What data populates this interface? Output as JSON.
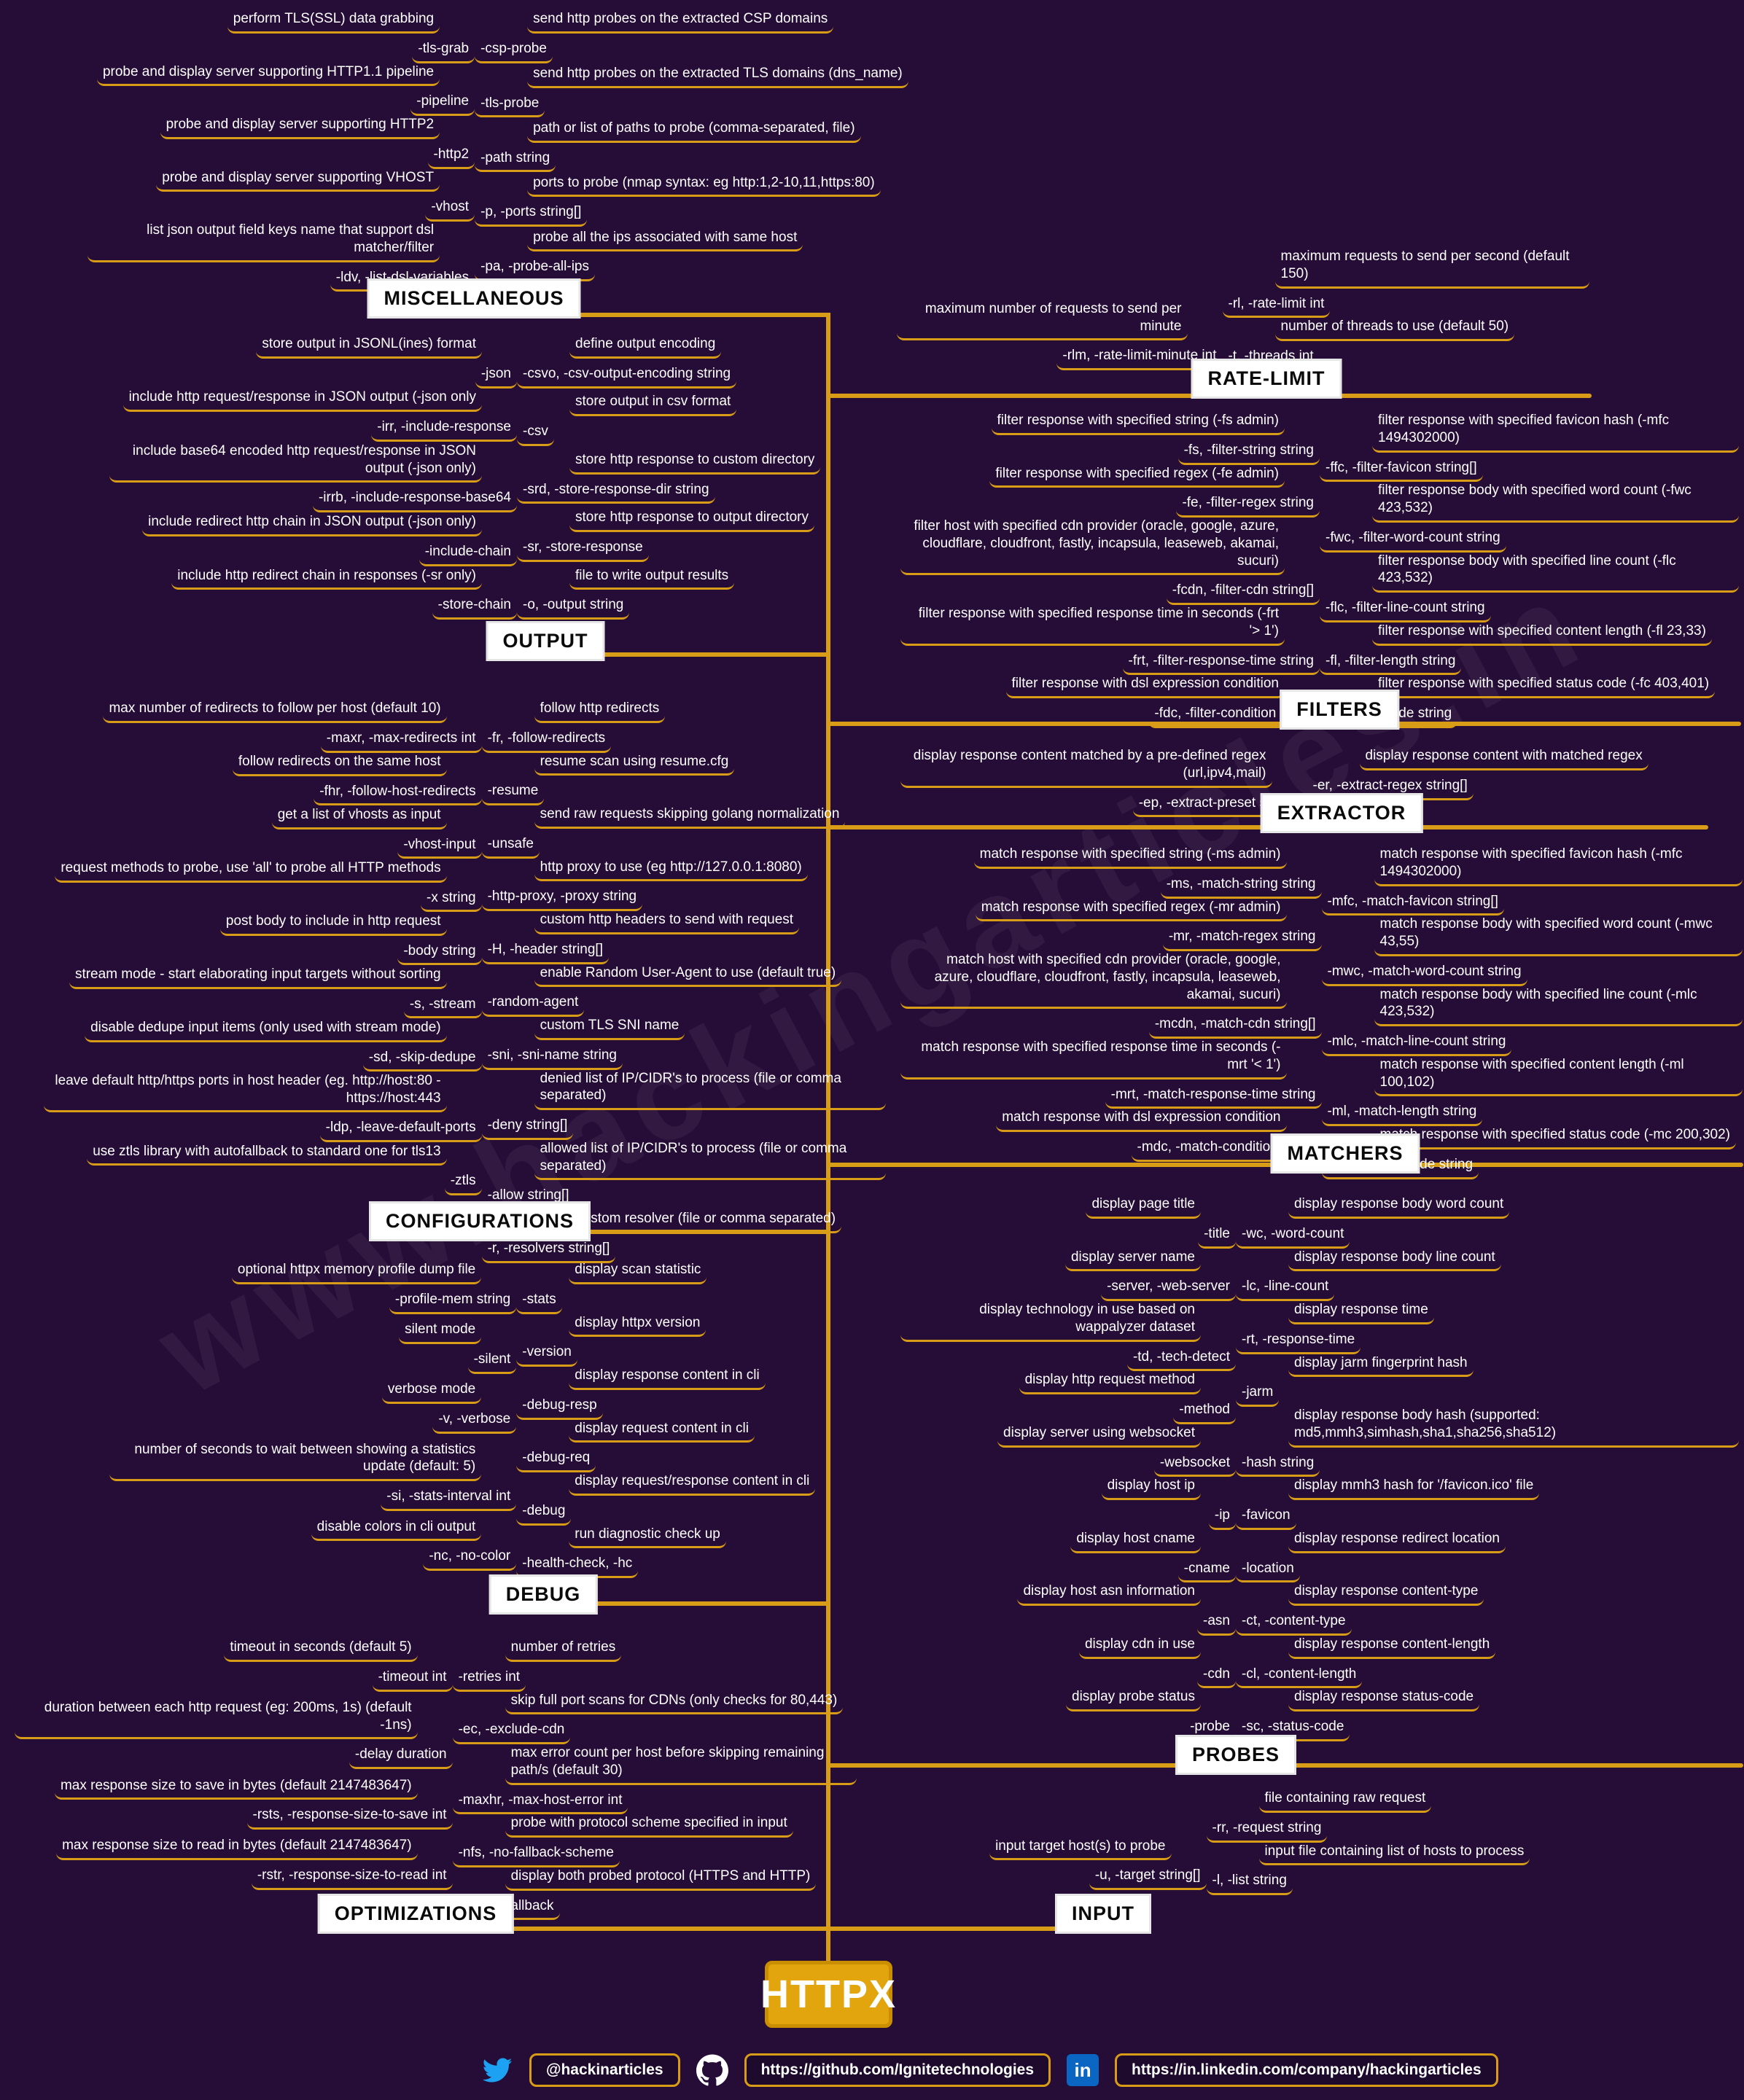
{
  "title": "HTTPX",
  "watermark": "www.hackingarticles.in",
  "colors": {
    "background": "#260d38",
    "line": "#d99c17",
    "text": "#ffffff",
    "node_bg": "#ffffff",
    "node_text": "#0a0a0a",
    "center_bg": "#e2a50e",
    "twitter_blue": "#1da1f2",
    "linkedin_blue": "#0a66c2"
  },
  "sections": [
    {
      "id": "miscellaneous",
      "label": "MISCELLANEOUS",
      "items_left": [
        {
          "desc": "perform TLS(SSL) data grabbing",
          "flag": "-tls-grab"
        },
        {
          "desc": "probe and display server supporting HTTP1.1 pipeline",
          "flag": "-pipeline"
        },
        {
          "desc": "probe and display server supporting HTTP2",
          "flag": "-http2"
        },
        {
          "desc": "probe and display server supporting VHOST",
          "flag": "-vhost"
        },
        {
          "desc": "list json output field keys name that support dsl matcher/filter",
          "flag": "-ldv, -list-dsl-variables"
        }
      ],
      "items_right": [
        {
          "desc": "send http probes on the extracted CSP domains",
          "flag": "-csp-probe"
        },
        {
          "desc": "send http probes on the extracted TLS domains (dns_name)",
          "flag": "-tls-probe"
        },
        {
          "desc": "path or list of paths to probe (comma-separated, file)",
          "flag": "-path string"
        },
        {
          "desc": "ports to probe (nmap syntax: eg http:1,2-10,11,https:80)",
          "flag": "-p, -ports string[]"
        },
        {
          "desc": "probe all the ips associated with same host",
          "flag": "-pa, -probe-all-ips"
        }
      ]
    },
    {
      "id": "rate-limit",
      "label": "RATE-LIMIT",
      "items_left": [
        {
          "desc": "maximum number of requests to send per minute",
          "flag": "-rlm, -rate-limit-minute int"
        }
      ],
      "items_right": [
        {
          "desc": "maximum requests to send per second (default 150)",
          "flag": "-rl, -rate-limit int"
        },
        {
          "desc": "number of threads to use (default 50)",
          "flag": "-t, -threads int"
        }
      ]
    },
    {
      "id": "output",
      "label": "OUTPUT",
      "items_left": [
        {
          "desc": "store output in JSONL(ines) format",
          "flag": "-json"
        },
        {
          "desc": "include http request/response in JSON output (-json only",
          "flag": "-irr, -include-response"
        },
        {
          "desc": "include base64 encoded http request/response in JSON output (-json only)",
          "flag": "-irrb, -include-response-base64"
        },
        {
          "desc": "include redirect http chain in JSON output (-json only)",
          "flag": "-include-chain"
        },
        {
          "desc": "include http redirect chain in responses (-sr only)",
          "flag": "-store-chain"
        }
      ],
      "items_right": [
        {
          "desc": "define output encoding",
          "flag": "-csvo, -csv-output-encoding string"
        },
        {
          "desc": "store output in csv format",
          "flag": "-csv"
        },
        {
          "desc": "store http response to custom directory",
          "flag": "-srd, -store-response-dir string"
        },
        {
          "desc": "store http response to output directory",
          "flag": "-sr, -store-response"
        },
        {
          "desc": "file to write output results",
          "flag": "-o, -output string"
        }
      ]
    },
    {
      "id": "filters",
      "label": "FILTERS",
      "items_left": [
        {
          "desc": "filter response with specified string (-fs admin)",
          "flag": "-fs, -filter-string string"
        },
        {
          "desc": "filter response with specified regex (-fe admin)",
          "flag": "-fe, -filter-regex string"
        },
        {
          "desc": "filter host with specified cdn provider (oracle, google, azure, cloudflare, cloudfront, fastly, incapsula, leaseweb, akamai, sucuri)",
          "flag": "-fcdn, -filter-cdn string[]"
        },
        {
          "desc": "filter response with specified response time in seconds (-frt '> 1')",
          "flag": "-frt, -filter-response-time string"
        },
        {
          "desc": "filter response with dsl expression condition",
          "flag": "-fdc, -filter-condition string"
        }
      ],
      "items_right": [
        {
          "desc": "filter response with specified favicon hash (-mfc 1494302000)",
          "flag": "-ffc, -filter-favicon string[]"
        },
        {
          "desc": "filter response body with specified word count (-fwc 423,532)",
          "flag": "-fwc, -filter-word-count string"
        },
        {
          "desc": "filter response body with specified line count (-flc 423,532)",
          "flag": "-flc, -filter-line-count string"
        },
        {
          "desc": "filter response with specified content length (-fl 23,33)",
          "flag": "-fl, -filter-length string"
        },
        {
          "desc": "filter response with specified status code (-fc 403,401)",
          "flag": "-fc, -filter-code string"
        }
      ]
    },
    {
      "id": "extractor",
      "label": "EXTRACTOR",
      "items_left": [
        {
          "desc": "display response content matched by a pre-defined regex (url,ipv4,mail)",
          "flag": "-ep, -extract-preset string[]"
        }
      ],
      "items_right": [
        {
          "desc": "display response content with matched regex",
          "flag": "-er, -extract-regex string[]"
        }
      ]
    },
    {
      "id": "configurations",
      "label": "CONFIGURATIONS",
      "items_left": [
        {
          "desc": "max number of redirects to follow per host (default 10)",
          "flag": "-maxr, -max-redirects int"
        },
        {
          "desc": "follow redirects on the same host",
          "flag": "-fhr, -follow-host-redirects"
        },
        {
          "desc": "get a list of vhosts as input",
          "flag": "-vhost-input"
        },
        {
          "desc": "request methods to probe, use 'all' to probe all HTTP methods",
          "flag": "-x string"
        },
        {
          "desc": "post body to include in http request",
          "flag": "-body string"
        },
        {
          "desc": "stream mode - start elaborating input targets without sorting",
          "flag": "-s, -stream"
        },
        {
          "desc": "disable dedupe input items (only used with stream mode)",
          "flag": "-sd, -skip-dedupe"
        },
        {
          "desc": "leave default http/https ports in host header (eg. http://host:80 - https://host:443",
          "flag": "-ldp, -leave-default-ports"
        },
        {
          "desc": "use ztls library with autofallback to standard one for tls13",
          "flag": "-ztls"
        }
      ],
      "items_right": [
        {
          "desc": "follow http redirects",
          "flag": "-fr, -follow-redirects"
        },
        {
          "desc": "resume scan using resume.cfg",
          "flag": "-resume"
        },
        {
          "desc": "send raw requests skipping golang normalization",
          "flag": "-unsafe"
        },
        {
          "desc": "http proxy to use (eg http://127.0.0.1:8080)",
          "flag": "-http-proxy, -proxy string"
        },
        {
          "desc": "custom http headers to send with request",
          "flag": "-H, -header string[]"
        },
        {
          "desc": "enable Random User-Agent to use (default true)",
          "flag": "-random-agent"
        },
        {
          "desc": "custom TLS SNI name",
          "flag": "-sni, -sni-name string"
        },
        {
          "desc": "denied list of IP/CIDR's to process (file or comma separated)",
          "flag": "-deny string[]"
        },
        {
          "desc": "allowed list of IP/CIDR's to process (file or comma separated)",
          "flag": "-allow string[]"
        },
        {
          "desc": "list of custom resolver (file or comma separated)",
          "flag": "-r, -resolvers string[]"
        }
      ]
    },
    {
      "id": "matchers",
      "label": "MATCHERS",
      "items_left": [
        {
          "desc": "match response with specified string (-ms admin)",
          "flag": "-ms, -match-string string"
        },
        {
          "desc": "match response with specified regex (-mr admin)",
          "flag": "-mr, -match-regex string"
        },
        {
          "desc": "match host with specified cdn provider (oracle, google, azure, cloudflare, cloudfront, fastly, incapsula, leaseweb, akamai, sucuri)",
          "flag": "-mcdn, -match-cdn string[]"
        },
        {
          "desc": "match response with specified response time in seconds (-mrt '< 1')",
          "flag": "-mrt, -match-response-time string"
        },
        {
          "desc": "match response with dsl expression condition",
          "flag": "-mdc, -match-condition string"
        }
      ],
      "items_right": [
        {
          "desc": "match response with specified favicon hash (-mfc 1494302000)",
          "flag": "-mfc, -match-favicon string[]"
        },
        {
          "desc": "match response body with specified word count (-mwc 43,55)",
          "flag": "-mwc, -match-word-count string"
        },
        {
          "desc": "match response body with specified line count (-mlc 423,532)",
          "flag": "-mlc, -match-line-count string"
        },
        {
          "desc": "match response with specified content length (-ml 100,102)",
          "flag": "-ml, -match-length string"
        },
        {
          "desc": "match response with specified status code (-mc 200,302)",
          "flag": "-mc, -match-code string"
        }
      ]
    },
    {
      "id": "debug",
      "label": "DEBUG",
      "items_left": [
        {
          "desc": "optional httpx memory profile dump file",
          "flag": "-profile-mem string"
        },
        {
          "desc": "silent mode",
          "flag": "-silent"
        },
        {
          "desc": "verbose mode",
          "flag": "-v, -verbose"
        },
        {
          "desc": "number of seconds to wait between showing a statistics update (default: 5)",
          "flag": "-si, -stats-interval int"
        },
        {
          "desc": "disable colors in cli output",
          "flag": "-nc, -no-color"
        }
      ],
      "items_right": [
        {
          "desc": "display scan statistic",
          "flag": "-stats"
        },
        {
          "desc": "display httpx version",
          "flag": "-version"
        },
        {
          "desc": "display response content in cli",
          "flag": "-debug-resp"
        },
        {
          "desc": "display request content in cli",
          "flag": "-debug-req"
        },
        {
          "desc": "display request/response content in cli",
          "flag": "-debug"
        },
        {
          "desc": "run diagnostic check up",
          "flag": "-health-check, -hc"
        }
      ]
    },
    {
      "id": "probes",
      "label": "PROBES",
      "items_left": [
        {
          "desc": "display page title",
          "flag": "-title"
        },
        {
          "desc": "display server name",
          "flag": "-server, -web-server"
        },
        {
          "desc": "display technology in use based on wappalyzer dataset",
          "flag": "-td, -tech-detect"
        },
        {
          "desc": "display http request method",
          "flag": "-method"
        },
        {
          "desc": "display server using websocket",
          "flag": "-websocket"
        },
        {
          "desc": "display host ip",
          "flag": "-ip"
        },
        {
          "desc": "display host cname",
          "flag": "-cname"
        },
        {
          "desc": "display host asn information",
          "flag": "-asn"
        },
        {
          "desc": "display cdn in use",
          "flag": "-cdn"
        },
        {
          "desc": "display probe status",
          "flag": "-probe"
        }
      ],
      "items_right": [
        {
          "desc": "display response body word count",
          "flag": "-wc, -word-count"
        },
        {
          "desc": "display response body line count",
          "flag": "-lc, -line-count"
        },
        {
          "desc": "display response time",
          "flag": "-rt, -response-time"
        },
        {
          "desc": "display jarm fingerprint hash",
          "flag": "-jarm"
        },
        {
          "desc": "display response body hash (supported: md5,mmh3,simhash,sha1,sha256,sha512)",
          "flag": "-hash string"
        },
        {
          "desc": "display mmh3 hash for '/favicon.ico' file",
          "flag": "-favicon"
        },
        {
          "desc": "display response redirect location",
          "flag": "-location"
        },
        {
          "desc": "display response content-type",
          "flag": "-ct, -content-type"
        },
        {
          "desc": "display response content-length",
          "flag": "-cl, -content-length"
        },
        {
          "desc": "display response status-code",
          "flag": "-sc, -status-code"
        }
      ]
    },
    {
      "id": "optimizations",
      "label": "OPTIMIZATIONS",
      "items_left": [
        {
          "desc": "timeout in seconds (default 5)",
          "flag": "-timeout int"
        },
        {
          "desc": "duration between each http request (eg: 200ms, 1s) (default -1ns)",
          "flag": "-delay duration"
        },
        {
          "desc": "max response size to save in bytes (default 2147483647)",
          "flag": "-rsts, -response-size-to-save int"
        },
        {
          "desc": "max response size to read in bytes (default 2147483647)",
          "flag": "-rstr, -response-size-to-read int"
        }
      ],
      "items_right": [
        {
          "desc": "number of retries",
          "flag": "-retries int"
        },
        {
          "desc": "skip full port scans for CDNs (only checks for 80,443)",
          "flag": "-ec, -exclude-cdn"
        },
        {
          "desc": "max error count per host before skipping remaining path/s (default 30)",
          "flag": "-maxhr, -max-host-error int"
        },
        {
          "desc": "probe with protocol scheme specified in input",
          "flag": "-nfs, -no-fallback-scheme"
        },
        {
          "desc": "display both probed protocol (HTTPS and HTTP)",
          "flag": "-nf, -no-fallback"
        }
      ]
    },
    {
      "id": "input",
      "label": "INPUT",
      "items_left": [
        {
          "desc": "input target host(s) to probe",
          "flag": "-u, -target string[]"
        }
      ],
      "items_right": [
        {
          "desc": "file containing raw request",
          "flag": "-rr, -request string"
        },
        {
          "desc": "input file containing list of hosts to process",
          "flag": "-l, -list string"
        }
      ]
    }
  ],
  "footer": {
    "twitter_handle": "@hackinarticles",
    "github_url": "https://github.com/Ignitetechnologies",
    "linkedin_url": "https://in.linkedin.com/company/hackingarticles",
    "twitter_icon": "twitter-bird",
    "github_icon": "github-octocat",
    "linkedin_icon": "linkedin-in",
    "linkedin_glyph": "in"
  }
}
